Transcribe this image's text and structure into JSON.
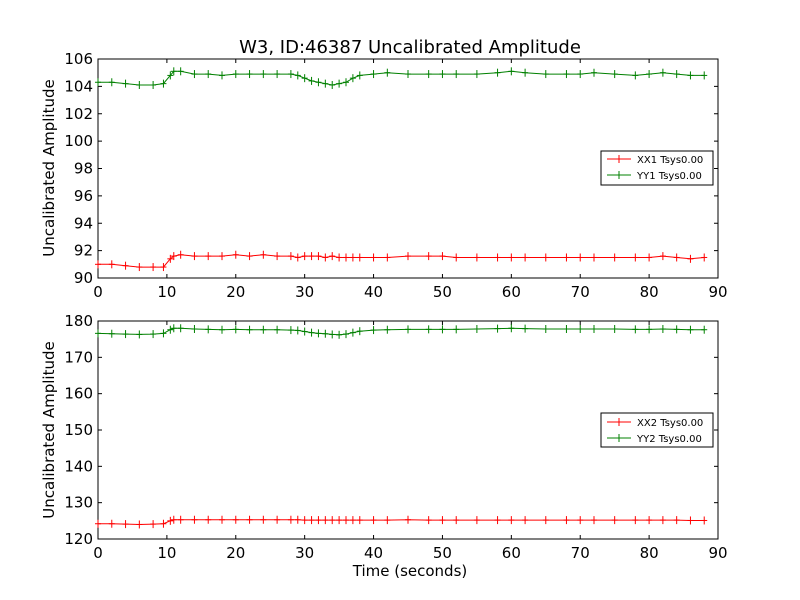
{
  "figure": {
    "title": "W3, ID:46387 Uncalibrated Amplitude",
    "xlabel": "Time (seconds)"
  },
  "colors": {
    "red": "#ff0000",
    "green": "#008000",
    "axes": "#000000"
  },
  "chart_data": [
    {
      "type": "line",
      "title": "W3, ID:46387 Uncalibrated Amplitude",
      "xlabel": "",
      "ylabel": "Uncalibrated Amplitude",
      "xlim": [
        0,
        90
      ],
      "ylim": [
        90,
        106
      ],
      "xticks": [
        "0",
        "10",
        "20",
        "30",
        "40",
        "50",
        "60",
        "70",
        "80",
        "90"
      ],
      "yticks": [
        "90",
        "92",
        "94",
        "96",
        "98",
        "100",
        "102",
        "104",
        "106"
      ],
      "legend_position": "center-right",
      "grid": false,
      "marker": "+",
      "x": [
        0,
        2,
        4,
        6,
        8,
        9.5,
        10.5,
        11,
        12,
        14,
        16,
        18,
        20,
        22,
        24,
        26,
        28,
        29,
        30,
        31,
        32,
        33,
        34,
        35,
        36,
        37,
        38,
        40,
        42,
        45,
        48,
        50,
        52,
        55,
        58,
        60,
        62,
        65,
        68,
        70,
        72,
        75,
        78,
        80,
        82,
        84,
        86,
        88
      ],
      "series": [
        {
          "name": "XX1 Tsys0.00",
          "color": "#ff0000",
          "values": [
            91.0,
            91.0,
            90.9,
            90.8,
            90.8,
            90.8,
            91.4,
            91.6,
            91.7,
            91.6,
            91.6,
            91.6,
            91.7,
            91.6,
            91.7,
            91.6,
            91.6,
            91.5,
            91.6,
            91.6,
            91.6,
            91.5,
            91.6,
            91.5,
            91.5,
            91.5,
            91.5,
            91.5,
            91.5,
            91.6,
            91.6,
            91.6,
            91.5,
            91.5,
            91.5,
            91.5,
            91.5,
            91.5,
            91.5,
            91.5,
            91.5,
            91.5,
            91.5,
            91.5,
            91.6,
            91.5,
            91.4,
            91.5
          ]
        },
        {
          "name": "YY1 Tsys0.00",
          "color": "#008000",
          "values": [
            104.3,
            104.3,
            104.2,
            104.1,
            104.1,
            104.2,
            104.8,
            105.1,
            105.1,
            104.9,
            104.9,
            104.8,
            104.9,
            104.9,
            104.9,
            104.9,
            104.9,
            104.8,
            104.6,
            104.4,
            104.3,
            104.2,
            104.1,
            104.2,
            104.3,
            104.6,
            104.8,
            104.9,
            105.0,
            104.9,
            104.9,
            104.9,
            104.9,
            104.9,
            105.0,
            105.1,
            105.0,
            104.9,
            104.9,
            104.9,
            105.0,
            104.9,
            104.8,
            104.9,
            105.0,
            104.9,
            104.8,
            104.8
          ]
        }
      ]
    },
    {
      "type": "line",
      "title": "",
      "xlabel": "Time (seconds)",
      "ylabel": "Uncalibrated Amplitude",
      "xlim": [
        0,
        90
      ],
      "ylim": [
        120,
        180
      ],
      "xticks": [
        "0",
        "10",
        "20",
        "30",
        "40",
        "50",
        "60",
        "70",
        "80",
        "90"
      ],
      "yticks": [
        "120",
        "130",
        "140",
        "150",
        "160",
        "170",
        "180"
      ],
      "legend_position": "center-right",
      "grid": false,
      "marker": "+",
      "x": [
        0,
        2,
        4,
        6,
        8,
        9.5,
        10.5,
        11,
        12,
        14,
        16,
        18,
        20,
        22,
        24,
        26,
        28,
        29,
        30,
        31,
        32,
        33,
        34,
        35,
        36,
        37,
        38,
        40,
        42,
        45,
        48,
        50,
        52,
        55,
        58,
        60,
        62,
        65,
        68,
        70,
        72,
        75,
        78,
        80,
        82,
        84,
        86,
        88
      ],
      "series": [
        {
          "name": "XX2 Tsys0.00",
          "color": "#ff0000",
          "values": [
            124.2,
            124.2,
            124.1,
            124.0,
            124.1,
            124.2,
            125.0,
            125.3,
            125.3,
            125.3,
            125.3,
            125.3,
            125.3,
            125.3,
            125.3,
            125.3,
            125.3,
            125.3,
            125.2,
            125.2,
            125.2,
            125.2,
            125.2,
            125.2,
            125.2,
            125.2,
            125.2,
            125.2,
            125.2,
            125.3,
            125.2,
            125.2,
            125.2,
            125.2,
            125.2,
            125.2,
            125.2,
            125.2,
            125.2,
            125.2,
            125.2,
            125.2,
            125.2,
            125.2,
            125.2,
            125.2,
            125.1,
            125.1
          ]
        },
        {
          "name": "YY2 Tsys0.00",
          "color": "#008000",
          "values": [
            176.6,
            176.5,
            176.4,
            176.3,
            176.4,
            176.6,
            177.6,
            178.0,
            178.0,
            177.8,
            177.7,
            177.6,
            177.7,
            177.6,
            177.6,
            177.6,
            177.5,
            177.4,
            177.1,
            176.8,
            176.6,
            176.5,
            176.3,
            176.2,
            176.4,
            176.8,
            177.2,
            177.5,
            177.6,
            177.7,
            177.7,
            177.7,
            177.7,
            177.8,
            177.9,
            178.0,
            177.9,
            177.8,
            177.8,
            177.8,
            177.8,
            177.8,
            177.7,
            177.7,
            177.8,
            177.7,
            177.6,
            177.6
          ]
        }
      ]
    }
  ]
}
